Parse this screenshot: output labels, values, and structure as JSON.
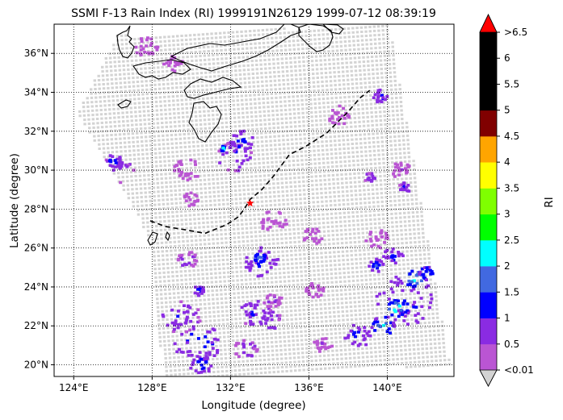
{
  "chart_data": {
    "type": "heatmap",
    "title": "SSMI F-13 Rain Index (RI) 1999191N26129 1999-07-12 08:39:19",
    "xlabel": "Longitude (degree)",
    "ylabel": "Latitude (degree)",
    "xlim": [
      123.0,
      143.4
    ],
    "ylim": [
      19.4,
      37.5
    ],
    "x_ticks": [
      {
        "value": 124,
        "label": "124°E"
      },
      {
        "value": 128,
        "label": "128°E"
      },
      {
        "value": 132,
        "label": "132°E"
      },
      {
        "value": 136,
        "label": "136°E"
      },
      {
        "value": 140,
        "label": "140°E"
      }
    ],
    "y_ticks": [
      {
        "value": 20,
        "label": "20°N"
      },
      {
        "value": 22,
        "label": "22°N"
      },
      {
        "value": 24,
        "label": "24°N"
      },
      {
        "value": 26,
        "label": "26°N"
      },
      {
        "value": 28,
        "label": "28°N"
      },
      {
        "value": 30,
        "label": "30°N"
      },
      {
        "value": 32,
        "label": "32°N"
      },
      {
        "value": 34,
        "label": "34°N"
      },
      {
        "value": 36,
        "label": "36°N"
      }
    ],
    "grid": true,
    "grid_style": "dotted",
    "no_rain_color": "#d3d3d3",
    "colorbar": {
      "label": "RI",
      "bounds": [
        0.01,
        0.5,
        1,
        1.5,
        2,
        2.5,
        3,
        3.5,
        4,
        4.5,
        5,
        5.5,
        6,
        6.5
      ],
      "colors": [
        "#ba55d3",
        "#8a2be2",
        "#0000ff",
        "#4169e1",
        "#00ffff",
        "#00ff00",
        "#7fff00",
        "#ffff00",
        "#ffa500",
        "#800000",
        "#000000",
        "#000000",
        "#000000"
      ],
      "under_color": "#d3d3d3",
      "over_color": "#ff0000",
      "tick_labels": [
        "<0.01",
        "0.5",
        "1",
        "1.5",
        "2",
        "2.5",
        "3",
        "3.5",
        "4",
        "4.5",
        "5",
        "5.5",
        "6",
        ">6.5"
      ]
    },
    "swath_corners": [
      {
        "lon": 126.2,
        "lat": 36.9
      },
      {
        "lon": 140.1,
        "lat": 37.5
      },
      {
        "lon": 143.2,
        "lat": 20.0
      },
      {
        "lon": 128.6,
        "lat": 19.2
      },
      {
        "lon": 127.9,
        "lat": 26.5
      },
      {
        "lon": 124.2,
        "lat": 32.9
      }
    ],
    "rain_cells": [
      {
        "lon": 126.2,
        "lat": 30.0,
        "ri": 0.9,
        "spread": 0.9
      },
      {
        "lon": 126.0,
        "lat": 30.4,
        "ri": 1.4,
        "spread": 0.5
      },
      {
        "lon": 127.7,
        "lat": 36.3,
        "ri": 0.5,
        "spread": 0.6
      },
      {
        "lon": 129.1,
        "lat": 35.5,
        "ri": 0.4,
        "spread": 0.5
      },
      {
        "lon": 132.2,
        "lat": 30.7,
        "ri": 1.1,
        "spread": 0.9
      },
      {
        "lon": 132.6,
        "lat": 31.5,
        "ri": 1.4,
        "spread": 0.6
      },
      {
        "lon": 131.6,
        "lat": 31.1,
        "ri": 2.6,
        "spread": 0.15
      },
      {
        "lon": 129.8,
        "lat": 30.0,
        "ri": 0.4,
        "spread": 0.7
      },
      {
        "lon": 130.0,
        "lat": 28.5,
        "ri": 0.4,
        "spread": 0.4
      },
      {
        "lon": 137.5,
        "lat": 32.8,
        "ri": 0.4,
        "spread": 0.6
      },
      {
        "lon": 139.7,
        "lat": 33.8,
        "ri": 1.2,
        "spread": 0.4
      },
      {
        "lon": 140.7,
        "lat": 30.0,
        "ri": 0.5,
        "spread": 0.5
      },
      {
        "lon": 140.9,
        "lat": 29.1,
        "ri": 1.2,
        "spread": 0.3
      },
      {
        "lon": 139.1,
        "lat": 29.6,
        "ri": 1.0,
        "spread": 0.3
      },
      {
        "lon": 134.2,
        "lat": 27.3,
        "ri": 0.4,
        "spread": 0.7
      },
      {
        "lon": 136.2,
        "lat": 26.6,
        "ri": 0.4,
        "spread": 0.5
      },
      {
        "lon": 139.5,
        "lat": 26.5,
        "ri": 0.4,
        "spread": 0.6
      },
      {
        "lon": 133.6,
        "lat": 25.3,
        "ri": 1.3,
        "spread": 0.9
      },
      {
        "lon": 133.5,
        "lat": 25.5,
        "ri": 2.2,
        "spread": 0.3
      },
      {
        "lon": 129.8,
        "lat": 25.4,
        "ri": 0.8,
        "spread": 0.5
      },
      {
        "lon": 140.3,
        "lat": 25.6,
        "ri": 1.3,
        "spread": 0.5
      },
      {
        "lon": 139.4,
        "lat": 25.1,
        "ri": 1.6,
        "spread": 0.4
      },
      {
        "lon": 140.9,
        "lat": 23.3,
        "ri": 1.3,
        "spread": 1.5
      },
      {
        "lon": 141.4,
        "lat": 24.4,
        "ri": 2.6,
        "spread": 0.5
      },
      {
        "lon": 140.5,
        "lat": 22.9,
        "ri": 2.6,
        "spread": 0.5
      },
      {
        "lon": 139.8,
        "lat": 22.0,
        "ri": 2.1,
        "spread": 0.6
      },
      {
        "lon": 138.5,
        "lat": 21.5,
        "ri": 1.4,
        "spread": 0.7
      },
      {
        "lon": 142.0,
        "lat": 24.7,
        "ri": 1.8,
        "spread": 0.4
      },
      {
        "lon": 130.3,
        "lat": 21.2,
        "ri": 1.4,
        "spread": 1.3
      },
      {
        "lon": 129.5,
        "lat": 22.4,
        "ri": 1.1,
        "spread": 1.0
      },
      {
        "lon": 130.5,
        "lat": 20.0,
        "ri": 1.6,
        "spread": 0.6
      },
      {
        "lon": 133.2,
        "lat": 22.7,
        "ri": 1.2,
        "spread": 0.8
      },
      {
        "lon": 134.0,
        "lat": 22.3,
        "ri": 1.0,
        "spread": 0.6
      },
      {
        "lon": 132.8,
        "lat": 20.8,
        "ri": 0.8,
        "spread": 0.6
      },
      {
        "lon": 130.4,
        "lat": 23.8,
        "ri": 1.4,
        "spread": 0.3
      },
      {
        "lon": 134.2,
        "lat": 23.3,
        "ri": 0.6,
        "spread": 0.5
      },
      {
        "lon": 136.7,
        "lat": 21.0,
        "ri": 0.5,
        "spread": 0.5
      },
      {
        "lon": 136.3,
        "lat": 23.8,
        "ri": 0.4,
        "spread": 0.5
      }
    ],
    "track": [
      {
        "lon": 127.9,
        "lat": 27.4
      },
      {
        "lon": 128.7,
        "lat": 27.1
      },
      {
        "lon": 129.9,
        "lat": 26.9
      },
      {
        "lon": 130.7,
        "lat": 26.75
      },
      {
        "lon": 131.8,
        "lat": 27.2
      },
      {
        "lon": 132.4,
        "lat": 27.6
      },
      {
        "lon": 132.7,
        "lat": 28.0
      },
      {
        "lon": 133.0,
        "lat": 28.5
      },
      {
        "lon": 133.6,
        "lat": 29.0
      },
      {
        "lon": 134.2,
        "lat": 29.7
      },
      {
        "lon": 135.0,
        "lat": 30.8
      },
      {
        "lon": 135.8,
        "lat": 31.2
      },
      {
        "lon": 136.9,
        "lat": 31.9
      },
      {
        "lon": 138.0,
        "lat": 33.0
      },
      {
        "lon": 138.6,
        "lat": 33.7
      },
      {
        "lon": 139.1,
        "lat": 34.1
      }
    ],
    "storm_center": {
      "lon": 133.0,
      "lat": 28.3
    }
  }
}
